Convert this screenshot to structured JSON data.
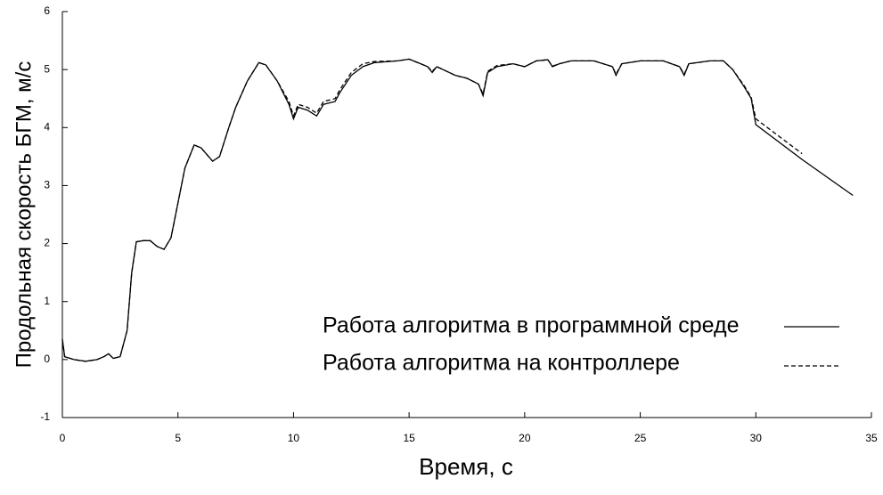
{
  "chart_data": {
    "type": "line",
    "xlabel": "Время, с",
    "ylabel": "Продольная скорость БГМ, м/с",
    "x": [
      0,
      0.1,
      0.5,
      1,
      1.5,
      1.8,
      2,
      2.2,
      2.5,
      2.8,
      3.0,
      3.2,
      3.5,
      3.8,
      4.1,
      4.4,
      4.7,
      5.0,
      5.3,
      5.7,
      6.0,
      6.5,
      6.8,
      7.2,
      7.5,
      8,
      8.5,
      8.8,
      9.3,
      9.8,
      10.0,
      10.2,
      10.6,
      11.0,
      11.3,
      11.8,
      12,
      12.5,
      13,
      13.5,
      14.5,
      15,
      15.5,
      15.8,
      16,
      16.2,
      17,
      17.5,
      18.0,
      18.2,
      18.4,
      18.8,
      19.5,
      20,
      20.5,
      21.0,
      21.2,
      21.5,
      22,
      23,
      23.8,
      23.95,
      24.2,
      25,
      26,
      26.7,
      26.9,
      27.1,
      28,
      28.6,
      29,
      29.5,
      29.8,
      30,
      32,
      34.2
    ],
    "series": [
      {
        "name": "Работа алгоритма в программной среде",
        "color": "#000000",
        "dash": false,
        "values": [
          0.35,
          0.05,
          0.0,
          -0.03,
          0.0,
          0.05,
          0.1,
          0.02,
          0.05,
          0.5,
          1.5,
          2.03,
          2.05,
          2.05,
          1.95,
          1.9,
          2.1,
          2.7,
          3.3,
          3.7,
          3.65,
          3.42,
          3.5,
          4.0,
          4.35,
          4.8,
          5.12,
          5.08,
          4.8,
          4.4,
          4.15,
          4.35,
          4.3,
          4.2,
          4.4,
          4.45,
          4.6,
          4.9,
          5.05,
          5.12,
          5.15,
          5.18,
          5.1,
          5.05,
          4.95,
          5.05,
          4.9,
          4.85,
          4.75,
          4.55,
          4.95,
          5.05,
          5.1,
          5.05,
          5.15,
          5.17,
          5.05,
          5.1,
          5.15,
          5.15,
          5.05,
          4.9,
          5.1,
          5.15,
          5.15,
          5.05,
          4.9,
          5.1,
          5.15,
          5.15,
          5.0,
          4.7,
          4.5,
          4.05,
          3.45,
          2.83
        ]
      },
      {
        "name": "Работа алгоритма на контроллере",
        "color": "#000000",
        "dash": true,
        "values": [
          0.35,
          0.05,
          0.0,
          -0.03,
          0.0,
          0.05,
          0.1,
          0.02,
          0.05,
          0.5,
          1.5,
          2.03,
          2.05,
          2.05,
          1.95,
          1.9,
          2.1,
          2.7,
          3.3,
          3.7,
          3.65,
          3.42,
          3.5,
          4.0,
          4.35,
          4.8,
          5.12,
          5.08,
          4.8,
          4.45,
          4.2,
          4.4,
          4.35,
          4.25,
          4.45,
          4.5,
          4.65,
          4.95,
          5.1,
          5.14,
          5.15,
          5.18,
          5.1,
          5.05,
          4.97,
          5.05,
          4.9,
          4.85,
          4.75,
          4.58,
          4.97,
          5.07,
          5.1,
          5.05,
          5.15,
          5.17,
          5.06,
          5.1,
          5.15,
          5.15,
          5.05,
          4.92,
          5.1,
          5.15,
          5.15,
          5.05,
          4.92,
          5.1,
          5.15,
          5.15,
          5.0,
          4.72,
          4.52,
          4.15,
          3.55,
          null
        ]
      }
    ],
    "xlim": [
      0,
      35
    ],
    "ylim": [
      -1,
      6
    ],
    "xticks": [
      0,
      5,
      10,
      15,
      20,
      25,
      30,
      35
    ],
    "yticks": [
      -1,
      0,
      1,
      2,
      3,
      4,
      5,
      6
    ],
    "legend": "lower right"
  }
}
